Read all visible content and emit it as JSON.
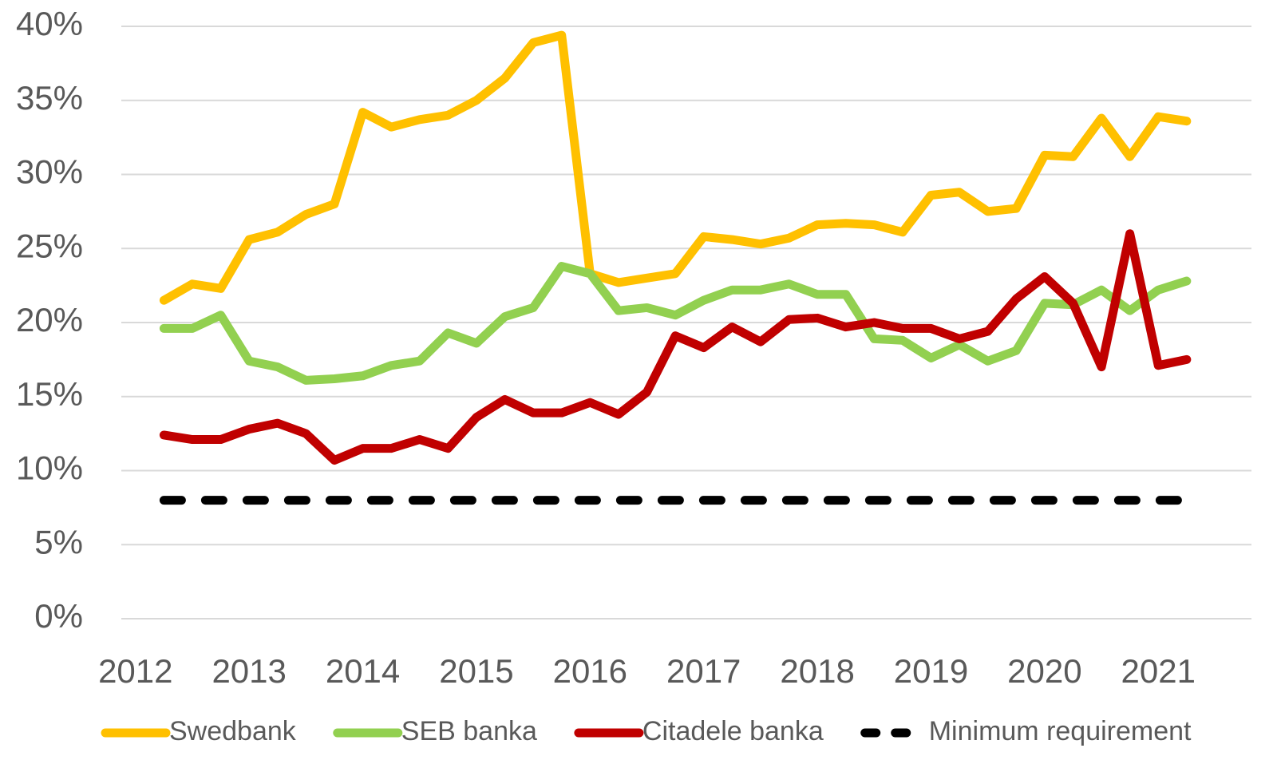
{
  "chart_data": {
    "type": "line",
    "x": [
      2012.25,
      2012.5,
      2012.75,
      2013,
      2013.25,
      2013.5,
      2013.75,
      2014,
      2014.25,
      2014.5,
      2014.75,
      2015,
      2015.25,
      2015.5,
      2015.75,
      2016,
      2016.25,
      2016.5,
      2016.75,
      2017,
      2017.25,
      2017.5,
      2017.75,
      2018,
      2018.25,
      2018.5,
      2018.75,
      2019,
      2019.25,
      2019.5,
      2019.75,
      2020,
      2020.25,
      2020.5,
      2020.75,
      2021,
      2021.25
    ],
    "xlim": [
      2011.875,
      2021.82
    ],
    "xticks": [
      2012,
      2013,
      2014,
      2015,
      2016,
      2017,
      2018,
      2019,
      2020,
      2021
    ],
    "ylim": [
      0,
      40
    ],
    "yticks": [
      {
        "value": 0,
        "label": "0%"
      },
      {
        "value": 5,
        "label": "5%"
      },
      {
        "value": 10,
        "label": "10%"
      },
      {
        "value": 15,
        "label": "15%"
      },
      {
        "value": 20,
        "label": "20%"
      },
      {
        "value": 25,
        "label": "25%"
      },
      {
        "value": 30,
        "label": "30%"
      },
      {
        "value": 35,
        "label": "35%"
      },
      {
        "value": 40,
        "label": "40%"
      }
    ],
    "grid": true,
    "legend": "bottom",
    "series": [
      {
        "name": "Swedbank",
        "color": "#ffc000",
        "values": [
          21.5,
          22.6,
          22.3,
          25.6,
          26.1,
          27.3,
          28.0,
          34.2,
          33.2,
          33.7,
          34.0,
          35.0,
          36.5,
          38.9,
          39.4,
          23.3,
          22.7,
          23.0,
          23.3,
          25.8,
          25.6,
          25.3,
          25.7,
          26.6,
          26.7,
          26.6,
          26.1,
          28.6,
          28.8,
          27.5,
          27.7,
          31.3,
          31.2,
          33.8,
          31.2,
          33.9,
          33.6
        ]
      },
      {
        "name": "SEB banka",
        "color": "#92d050",
        "values": [
          19.6,
          19.6,
          20.5,
          17.4,
          17.0,
          16.1,
          16.2,
          16.4,
          17.1,
          17.4,
          19.3,
          18.6,
          20.4,
          21.0,
          23.8,
          23.3,
          20.8,
          21.0,
          20.5,
          21.5,
          22.2,
          22.2,
          22.6,
          21.9,
          21.9,
          18.9,
          18.8,
          17.6,
          18.5,
          17.4,
          18.1,
          21.3,
          21.2,
          22.2,
          20.8,
          22.2,
          22.8
        ]
      },
      {
        "name": "Citadele banka",
        "color": "#c00000",
        "values": [
          12.4,
          12.1,
          12.1,
          12.8,
          13.2,
          12.5,
          10.7,
          11.5,
          11.5,
          12.1,
          11.5,
          13.6,
          14.8,
          13.9,
          13.9,
          14.6,
          13.8,
          15.3,
          19.1,
          18.3,
          19.7,
          18.7,
          20.2,
          20.3,
          19.7,
          20.0,
          19.6,
          19.6,
          18.9,
          19.4,
          21.6,
          23.1,
          21.3,
          17.0,
          26.0,
          17.1,
          17.5
        ]
      },
      {
        "name": "Minimum requirement",
        "color": "#000000",
        "dashed": true,
        "values": [
          8,
          8,
          8,
          8,
          8,
          8,
          8,
          8,
          8,
          8,
          8,
          8,
          8,
          8,
          8,
          8,
          8,
          8,
          8,
          8,
          8,
          8,
          8,
          8,
          8,
          8,
          8,
          8,
          8,
          8,
          8,
          8,
          8,
          8,
          8,
          8,
          8
        ]
      }
    ]
  }
}
